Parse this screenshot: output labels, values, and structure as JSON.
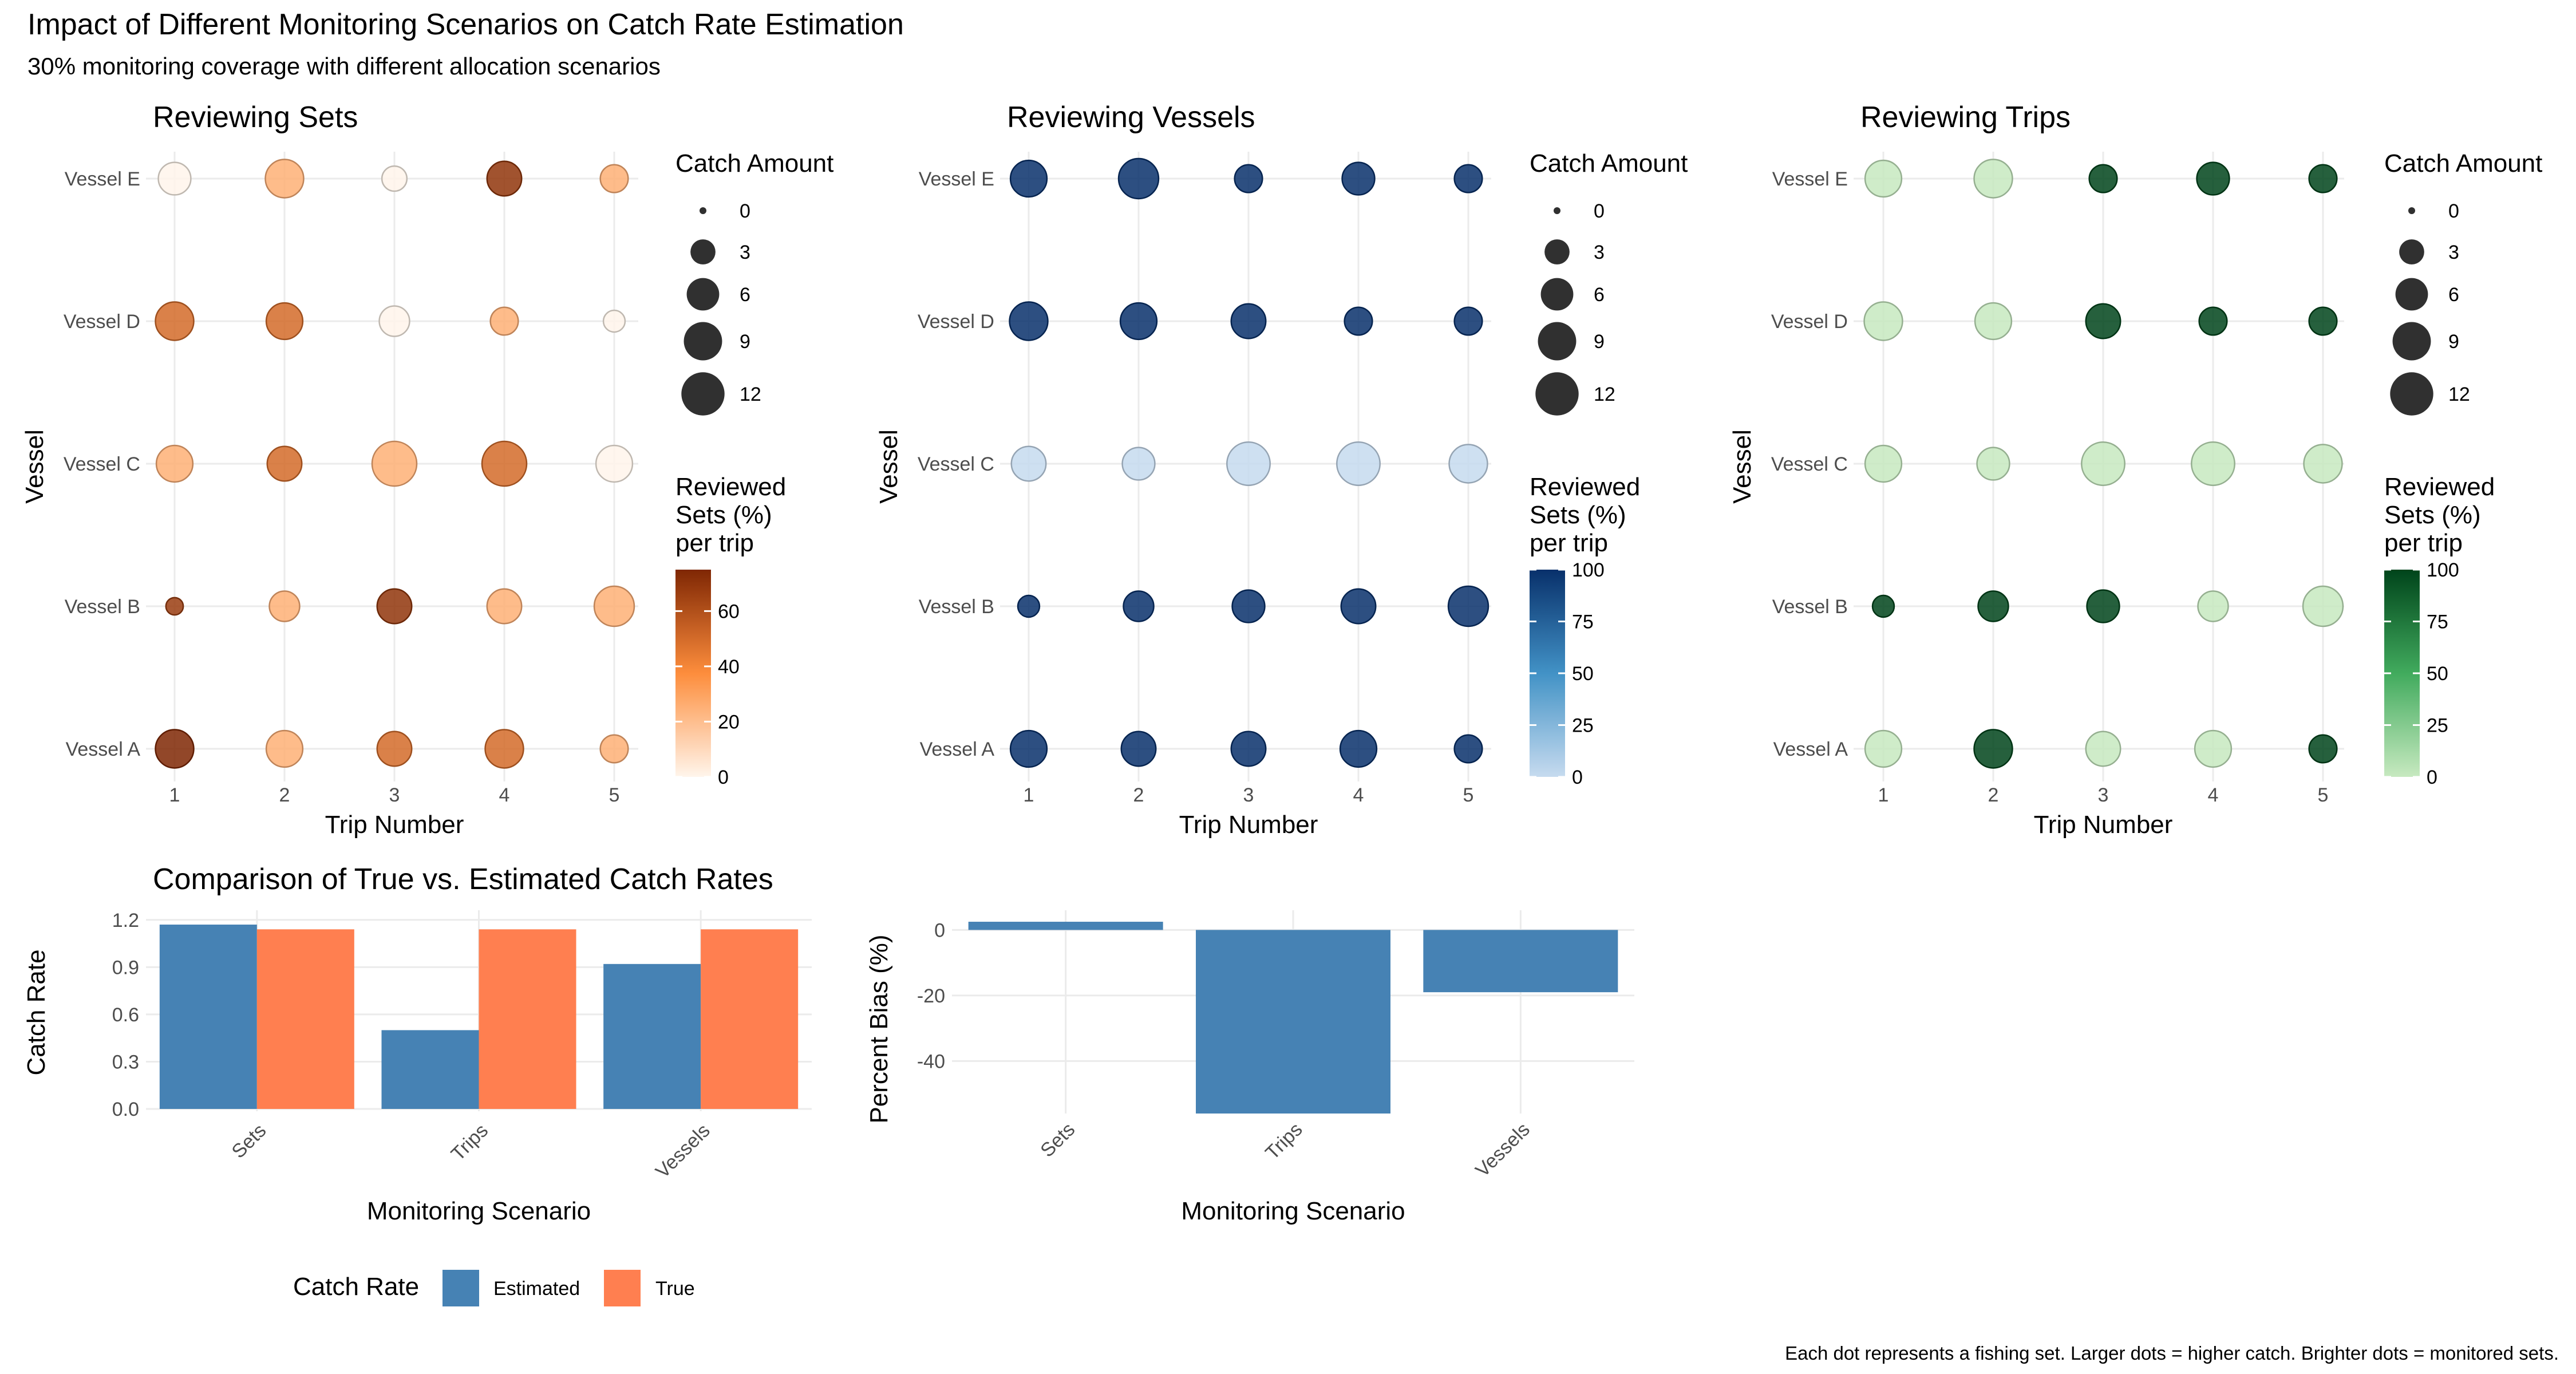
{
  "title": "Impact of Different Monitoring Scenarios on Catch Rate Estimation",
  "subtitle": "30% monitoring coverage with different allocation scenarios",
  "caption": "Each dot represents a fishing set. Larger dots = higher catch. Brighter dots = monitored sets.",
  "colors": {
    "sets_low": "#fff5eb",
    "sets_mid": "#fd8d3c",
    "sets_high": "#7f2704",
    "vessels_low": "#c6dbef",
    "vessels_mid": "#4292c6",
    "vessels_high": "#08306b",
    "trips_low": "#c7e9c0",
    "trips_mid": "#41ab5d",
    "trips_high": "#00441b",
    "estimated": "#4682b4",
    "true": "#ff7f50"
  },
  "chart_data": [
    {
      "id": "sets",
      "type": "scatter",
      "title": "Reviewing Sets",
      "xlabel": "Trip Number",
      "ylabel": "Vessel",
      "x_ticks": [
        1,
        2,
        3,
        4,
        5
      ],
      "y_categories": [
        "Vessel A",
        "Vessel B",
        "Vessel C",
        "Vessel D",
        "Vessel E"
      ],
      "size_legend": {
        "title": "Catch Amount",
        "breaks": [
          0,
          3,
          6,
          9,
          12
        ],
        "range": [
          0,
          12
        ]
      },
      "color_legend": {
        "title": "Reviewed\n Sets (%)\n per trip",
        "breaks": [
          0,
          20,
          40,
          60
        ],
        "range": [
          0,
          75
        ],
        "scale": "Oranges"
      },
      "points": [
        {
          "x": 1,
          "y": "Vessel A",
          "catch": 9,
          "reviewed": 75
        },
        {
          "x": 2,
          "y": "Vessel A",
          "catch": 8,
          "reviewed": 25
        },
        {
          "x": 3,
          "y": "Vessel A",
          "catch": 7,
          "reviewed": 50
        },
        {
          "x": 4,
          "y": "Vessel A",
          "catch": 9,
          "reviewed": 50
        },
        {
          "x": 5,
          "y": "Vessel A",
          "catch": 4,
          "reviewed": 25
        },
        {
          "x": 1,
          "y": "Vessel B",
          "catch": 1,
          "reviewed": 67
        },
        {
          "x": 2,
          "y": "Vessel B",
          "catch": 5,
          "reviewed": 25
        },
        {
          "x": 3,
          "y": "Vessel B",
          "catch": 7,
          "reviewed": 70
        },
        {
          "x": 4,
          "y": "Vessel B",
          "catch": 7,
          "reviewed": 25
        },
        {
          "x": 5,
          "y": "Vessel B",
          "catch": 10,
          "reviewed": 25
        },
        {
          "x": 1,
          "y": "Vessel C",
          "catch": 8,
          "reviewed": 25
        },
        {
          "x": 2,
          "y": "Vessel C",
          "catch": 7,
          "reviewed": 50
        },
        {
          "x": 3,
          "y": "Vessel C",
          "catch": 13,
          "reviewed": 25
        },
        {
          "x": 4,
          "y": "Vessel C",
          "catch": 13,
          "reviewed": 50
        },
        {
          "x": 5,
          "y": "Vessel C",
          "catch": 8,
          "reviewed": 0
        },
        {
          "x": 1,
          "y": "Vessel D",
          "catch": 9,
          "reviewed": 50
        },
        {
          "x": 2,
          "y": "Vessel D",
          "catch": 8,
          "reviewed": 50
        },
        {
          "x": 3,
          "y": "Vessel D",
          "catch": 5,
          "reviewed": 0
        },
        {
          "x": 4,
          "y": "Vessel D",
          "catch": 4,
          "reviewed": 25
        },
        {
          "x": 5,
          "y": "Vessel D",
          "catch": 2,
          "reviewed": 0
        },
        {
          "x": 1,
          "y": "Vessel E",
          "catch": 6,
          "reviewed": 0
        },
        {
          "x": 2,
          "y": "Vessel E",
          "catch": 9,
          "reviewed": 25
        },
        {
          "x": 3,
          "y": "Vessel E",
          "catch": 3,
          "reviewed": 0
        },
        {
          "x": 4,
          "y": "Vessel E",
          "catch": 7,
          "reviewed": 70
        },
        {
          "x": 5,
          "y": "Vessel E",
          "catch": 4,
          "reviewed": 25
        }
      ]
    },
    {
      "id": "vessels",
      "type": "scatter",
      "title": "Reviewing Vessels",
      "xlabel": "Trip Number",
      "ylabel": "Vessel",
      "x_ticks": [
        1,
        2,
        3,
        4,
        5
      ],
      "y_categories": [
        "Vessel A",
        "Vessel B",
        "Vessel C",
        "Vessel D",
        "Vessel E"
      ],
      "size_legend": {
        "title": "Catch Amount",
        "breaks": [
          0,
          3,
          6,
          9,
          12
        ],
        "range": [
          0,
          12
        ]
      },
      "color_legend": {
        "title": "Reviewed\n Sets (%)\n per trip",
        "breaks": [
          0,
          25,
          50,
          75,
          100
        ],
        "range": [
          0,
          100
        ],
        "scale": "Blues"
      },
      "points": [
        {
          "x": 1,
          "y": "Vessel A",
          "catch": 8,
          "reviewed": 100
        },
        {
          "x": 2,
          "y": "Vessel A",
          "catch": 7,
          "reviewed": 100
        },
        {
          "x": 3,
          "y": "Vessel A",
          "catch": 7,
          "reviewed": 100
        },
        {
          "x": 4,
          "y": "Vessel A",
          "catch": 8,
          "reviewed": 100
        },
        {
          "x": 5,
          "y": "Vessel A",
          "catch": 4,
          "reviewed": 100
        },
        {
          "x": 1,
          "y": "Vessel B",
          "catch": 2,
          "reviewed": 100
        },
        {
          "x": 2,
          "y": "Vessel B",
          "catch": 5,
          "reviewed": 100
        },
        {
          "x": 3,
          "y": "Vessel B",
          "catch": 6,
          "reviewed": 100
        },
        {
          "x": 4,
          "y": "Vessel B",
          "catch": 7,
          "reviewed": 100
        },
        {
          "x": 5,
          "y": "Vessel B",
          "catch": 10,
          "reviewed": 100
        },
        {
          "x": 1,
          "y": "Vessel C",
          "catch": 7,
          "reviewed": 0
        },
        {
          "x": 2,
          "y": "Vessel C",
          "catch": 6,
          "reviewed": 0
        },
        {
          "x": 3,
          "y": "Vessel C",
          "catch": 12,
          "reviewed": 0
        },
        {
          "x": 4,
          "y": "Vessel C",
          "catch": 12,
          "reviewed": 0
        },
        {
          "x": 5,
          "y": "Vessel C",
          "catch": 9,
          "reviewed": 0
        },
        {
          "x": 1,
          "y": "Vessel D",
          "catch": 9,
          "reviewed": 100
        },
        {
          "x": 2,
          "y": "Vessel D",
          "catch": 8,
          "reviewed": 100
        },
        {
          "x": 3,
          "y": "Vessel D",
          "catch": 7,
          "reviewed": 100
        },
        {
          "x": 4,
          "y": "Vessel D",
          "catch": 4,
          "reviewed": 100
        },
        {
          "x": 5,
          "y": "Vessel D",
          "catch": 4,
          "reviewed": 100
        },
        {
          "x": 1,
          "y": "Vessel E",
          "catch": 8,
          "reviewed": 100
        },
        {
          "x": 2,
          "y": "Vessel E",
          "catch": 10,
          "reviewed": 100
        },
        {
          "x": 3,
          "y": "Vessel E",
          "catch": 4,
          "reviewed": 100
        },
        {
          "x": 4,
          "y": "Vessel E",
          "catch": 6,
          "reviewed": 100
        },
        {
          "x": 5,
          "y": "Vessel E",
          "catch": 4,
          "reviewed": 100
        }
      ]
    },
    {
      "id": "trips",
      "type": "scatter",
      "title": "Reviewing Trips",
      "xlabel": "Trip Number",
      "ylabel": "Vessel",
      "x_ticks": [
        1,
        2,
        3,
        4,
        5
      ],
      "y_categories": [
        "Vessel A",
        "Vessel B",
        "Vessel C",
        "Vessel D",
        "Vessel E"
      ],
      "size_legend": {
        "title": "Catch Amount",
        "breaks": [
          0,
          3,
          6,
          9,
          12
        ],
        "range": [
          0,
          12
        ]
      },
      "color_legend": {
        "title": "Reviewed\n Sets (%)\n per trip",
        "breaks": [
          0,
          25,
          50,
          75,
          100
        ],
        "range": [
          0,
          100
        ],
        "scale": "Greens"
      },
      "points": [
        {
          "x": 1,
          "y": "Vessel A",
          "catch": 8,
          "reviewed": 0
        },
        {
          "x": 2,
          "y": "Vessel A",
          "catch": 9,
          "reviewed": 100
        },
        {
          "x": 3,
          "y": "Vessel A",
          "catch": 7,
          "reviewed": 0
        },
        {
          "x": 4,
          "y": "Vessel A",
          "catch": 8,
          "reviewed": 0
        },
        {
          "x": 5,
          "y": "Vessel A",
          "catch": 4,
          "reviewed": 100
        },
        {
          "x": 1,
          "y": "Vessel B",
          "catch": 2,
          "reviewed": 100
        },
        {
          "x": 2,
          "y": "Vessel B",
          "catch": 5,
          "reviewed": 100
        },
        {
          "x": 3,
          "y": "Vessel B",
          "catch": 6,
          "reviewed": 100
        },
        {
          "x": 4,
          "y": "Vessel B",
          "catch": 5,
          "reviewed": 0
        },
        {
          "x": 5,
          "y": "Vessel B",
          "catch": 10,
          "reviewed": 0
        },
        {
          "x": 1,
          "y": "Vessel C",
          "catch": 8,
          "reviewed": 0
        },
        {
          "x": 2,
          "y": "Vessel C",
          "catch": 6,
          "reviewed": 0
        },
        {
          "x": 3,
          "y": "Vessel C",
          "catch": 12,
          "reviewed": 0
        },
        {
          "x": 4,
          "y": "Vessel C",
          "catch": 12,
          "reviewed": 0
        },
        {
          "x": 5,
          "y": "Vessel C",
          "catch": 9,
          "reviewed": 0
        },
        {
          "x": 1,
          "y": "Vessel D",
          "catch": 9,
          "reviewed": 0
        },
        {
          "x": 2,
          "y": "Vessel D",
          "catch": 8,
          "reviewed": 0
        },
        {
          "x": 3,
          "y": "Vessel D",
          "catch": 7,
          "reviewed": 100
        },
        {
          "x": 4,
          "y": "Vessel D",
          "catch": 4,
          "reviewed": 100
        },
        {
          "x": 5,
          "y": "Vessel D",
          "catch": 4,
          "reviewed": 100
        },
        {
          "x": 1,
          "y": "Vessel E",
          "catch": 8,
          "reviewed": 0
        },
        {
          "x": 2,
          "y": "Vessel E",
          "catch": 9,
          "reviewed": 0
        },
        {
          "x": 3,
          "y": "Vessel E",
          "catch": 4,
          "reviewed": 100
        },
        {
          "x": 4,
          "y": "Vessel E",
          "catch": 6,
          "reviewed": 100
        },
        {
          "x": 5,
          "y": "Vessel E",
          "catch": 4,
          "reviewed": 100
        }
      ]
    },
    {
      "id": "rates",
      "type": "bar",
      "title": "Comparison of True vs. Estimated Catch Rates",
      "xlabel": "Monitoring Scenario",
      "ylabel": "Catch Rate",
      "categories": [
        "Sets",
        "Trips",
        "Vessels"
      ],
      "series": [
        {
          "name": "Estimated",
          "values": [
            1.17,
            0.5,
            0.92
          ],
          "color": "#4682b4"
        },
        {
          "name": "True",
          "values": [
            1.14,
            1.14,
            1.14
          ],
          "color": "#ff7f50"
        }
      ],
      "ylim": [
        0,
        1.25
      ],
      "yticks": [
        0.0,
        0.3,
        0.6,
        0.9,
        1.2
      ],
      "ytick_labels": [
        "0.0",
        "0.3",
        "0.6",
        "0.9",
        "1.2"
      ],
      "legend": {
        "title": "Catch Rate",
        "position": "bottom",
        "labels": [
          "Estimated",
          "True"
        ]
      }
    },
    {
      "id": "bias",
      "type": "bar",
      "title": "",
      "xlabel": "Monitoring Scenario",
      "ylabel": "Percent Bias (%)",
      "categories": [
        "Sets",
        "Trips",
        "Vessels"
      ],
      "values": [
        2.5,
        -56,
        -19
      ],
      "color": "#4682b4",
      "ylim": [
        -56,
        6
      ],
      "yticks": [
        0,
        -20,
        -40
      ],
      "ytick_labels": [
        "0",
        "-20",
        "-40"
      ]
    }
  ]
}
